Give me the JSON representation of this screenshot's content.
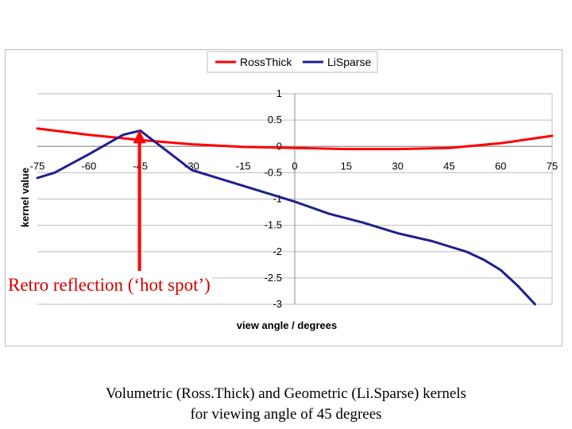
{
  "chart_data": {
    "type": "line",
    "title": "",
    "xlabel": "view angle / degrees",
    "ylabel": "kernel value",
    "xlim": [
      -75,
      75
    ],
    "ylim": [
      -3,
      1
    ],
    "xticks": [
      -75,
      -60,
      -45,
      -30,
      -15,
      0,
      15,
      30,
      45,
      60,
      75
    ],
    "yticks": [
      1,
      0.5,
      0,
      -0.5,
      -1,
      -1.5,
      -2,
      -2.5,
      -3
    ],
    "ytick_labels": [
      "1",
      "0.5",
      "0",
      "-0.5",
      "-1",
      "-1.5",
      "-2",
      "-2.5",
      "-3"
    ],
    "grid": "horizontal",
    "legend_position": "top",
    "series": [
      {
        "name": "RossThick",
        "color": "#ff0000",
        "x": [
          -75,
          -60,
          -45,
          -30,
          -15,
          0,
          15,
          30,
          45,
          60,
          75
        ],
        "y": [
          0.34,
          0.22,
          0.12,
          0.04,
          -0.01,
          -0.03,
          -0.05,
          -0.05,
          -0.03,
          0.06,
          0.2
        ]
      },
      {
        "name": "LiSparse",
        "color": "#1f1f8f",
        "x": [
          -75,
          -70,
          -60,
          -50,
          -45,
          -40,
          -30,
          -20,
          -10,
          0,
          10,
          20,
          30,
          40,
          50,
          55,
          60,
          65,
          70
        ],
        "y": [
          -0.6,
          -0.5,
          -0.15,
          0.22,
          0.3,
          0.05,
          -0.45,
          -0.65,
          -0.85,
          -1.05,
          -1.28,
          -1.45,
          -1.65,
          -1.8,
          -2.0,
          -2.15,
          -2.35,
          -2.65,
          -3.0
        ]
      }
    ],
    "annotations": [
      {
        "text": "Retro reflection (‘hot spot’)",
        "x": -45,
        "y": 0.3,
        "color": "#ff0000"
      }
    ]
  },
  "caption": {
    "line1": "Volumetric (Ross.Thick) and Geometric (Li.Sparse) kernels",
    "line2": "for viewing angle of 45 degrees"
  }
}
